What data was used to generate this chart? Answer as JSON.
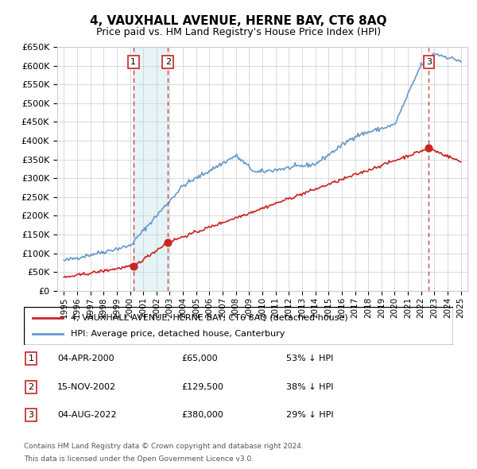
{
  "title": "4, VAUXHALL AVENUE, HERNE BAY, CT6 8AQ",
  "subtitle": "Price paid vs. HM Land Registry's House Price Index (HPI)",
  "legend_line1": "4, VAUXHALL AVENUE, HERNE BAY, CT6 8AQ (detached house)",
  "legend_line2": "HPI: Average price, detached house, Canterbury",
  "footer1": "Contains HM Land Registry data © Crown copyright and database right 2024.",
  "footer2": "This data is licensed under the Open Government Licence v3.0.",
  "transactions": [
    {
      "num": 1,
      "date": "04-APR-2000",
      "year": 2000.25,
      "price": 65000,
      "label": "53% ↓ HPI"
    },
    {
      "num": 2,
      "date": "15-NOV-2002",
      "year": 2002.87,
      "price": 129500,
      "label": "38% ↓ HPI"
    },
    {
      "num": 3,
      "date": "04-AUG-2022",
      "year": 2022.58,
      "price": 380000,
      "label": "29% ↓ HPI"
    }
  ],
  "hpi_color": "#6699cc",
  "price_color": "#cc2222",
  "shaded_region": [
    2000.25,
    2002.87
  ],
  "ylim": [
    0,
    650000
  ],
  "xlim": [
    1994.5,
    2025.5
  ],
  "yticks": [
    0,
    50000,
    100000,
    150000,
    200000,
    250000,
    300000,
    350000,
    400000,
    450000,
    500000,
    550000,
    600000,
    650000
  ],
  "xticks": [
    1995,
    1996,
    1997,
    1998,
    1999,
    2000,
    2001,
    2002,
    2003,
    2004,
    2005,
    2006,
    2007,
    2008,
    2009,
    2010,
    2011,
    2012,
    2013,
    2014,
    2015,
    2016,
    2017,
    2018,
    2019,
    2020,
    2021,
    2022,
    2023,
    2024,
    2025
  ]
}
